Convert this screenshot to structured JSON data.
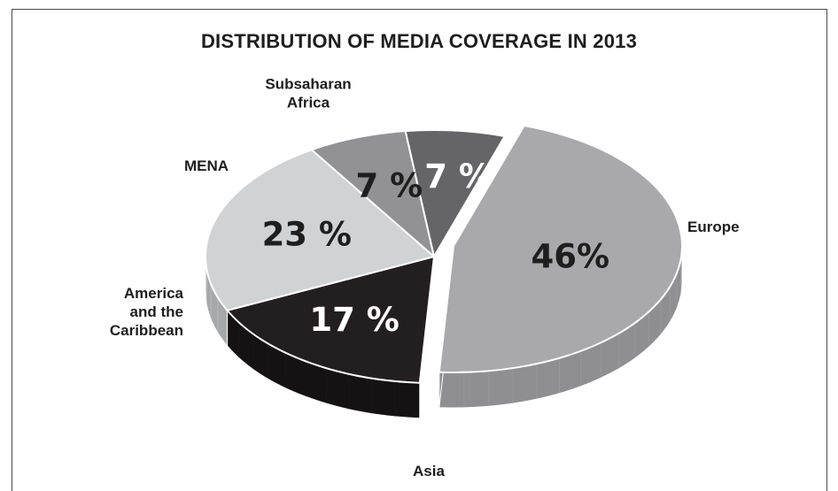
{
  "chart_data": {
    "type": "pie",
    "title": "DISTRIBUTION OF MEDIA COVERAGE IN 2013",
    "slices": [
      {
        "label": "Europe",
        "value": 46,
        "value_label": "46%",
        "color": "#a9a9ab",
        "side_color": "#8f8f91",
        "text_color": "#1e1e1e",
        "exploded": true
      },
      {
        "label": "Asia",
        "value": 17,
        "value_label": "17 %",
        "color": "#231f20",
        "side_color": "#151213",
        "text_color": "#ffffff",
        "exploded": false
      },
      {
        "label": "America and the Caribbean",
        "label_lines": [
          "America",
          "and the",
          "Caribbean"
        ],
        "value": 23,
        "value_label": "23 %",
        "color": "#d1d2d4",
        "side_color": "#a7a8aa",
        "text_color": "#1e1e1e",
        "exploded": false
      },
      {
        "label": "MENA",
        "value": 7,
        "value_label": "7 %",
        "color": "#929294",
        "side_color": "#7c7c7e",
        "text_color": "#1e1e1e",
        "exploded": false
      },
      {
        "label": "Subsaharan Africa",
        "label_lines": [
          "Subsaharan",
          "Africa"
        ],
        "value": 7,
        "value_label": "7 %",
        "color": "#656567",
        "side_color": "#505052",
        "text_color": "#ffffff",
        "exploded": false
      }
    ],
    "style": "3d-exploded-pie",
    "legend": "none"
  }
}
